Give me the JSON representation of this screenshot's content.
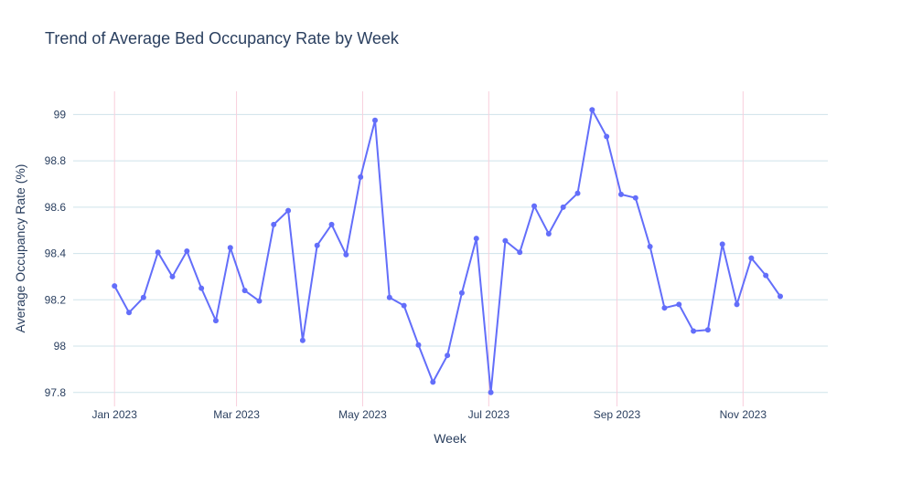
{
  "chart_data": {
    "type": "line",
    "title": "Trend of Average Bed Occupancy Rate by Week",
    "xlabel": "Week",
    "ylabel": "Average Occupancy Rate (%)",
    "ylim": [
      97.74,
      99.1
    ],
    "xlim": [
      "2022-12-12",
      "2023-12-12"
    ],
    "grid": {
      "x": true,
      "y": true
    },
    "colors": {
      "line": "#636efa",
      "x_grid": "#f8cfdc",
      "y_grid": "#cfe3ea",
      "text": "#2a3f5f"
    },
    "y_ticks": [
      97.8,
      98,
      98.2,
      98.4,
      98.6,
      98.8,
      99
    ],
    "y_tick_labels": [
      "97.8",
      "98",
      "98.2",
      "98.4",
      "98.6",
      "98.8",
      "99"
    ],
    "x_ticks": [
      {
        "date": "2023-01-01",
        "label": "Jan 2023"
      },
      {
        "date": "2023-03-01",
        "label": "Mar 2023"
      },
      {
        "date": "2023-05-01",
        "label": "May 2023"
      },
      {
        "date": "2023-07-01",
        "label": "Jul 2023"
      },
      {
        "date": "2023-09-01",
        "label": "Sep 2023"
      },
      {
        "date": "2023-11-01",
        "label": "Nov 2023"
      }
    ],
    "series": [
      {
        "x": [
          "2023-01-01",
          "2023-01-08",
          "2023-01-15",
          "2023-01-22",
          "2023-01-29",
          "2023-02-05",
          "2023-02-12",
          "2023-02-19",
          "2023-02-26",
          "2023-03-05",
          "2023-03-12",
          "2023-03-19",
          "2023-03-26",
          "2023-04-02",
          "2023-04-09",
          "2023-04-16",
          "2023-04-23",
          "2023-04-30",
          "2023-05-07",
          "2023-05-14",
          "2023-05-21",
          "2023-05-28",
          "2023-06-04",
          "2023-06-11",
          "2023-06-18",
          "2023-06-25",
          "2023-07-02",
          "2023-07-09",
          "2023-07-16",
          "2023-07-23",
          "2023-07-30",
          "2023-08-06",
          "2023-08-13",
          "2023-08-20",
          "2023-08-27",
          "2023-09-03",
          "2023-09-10",
          "2023-09-17",
          "2023-09-24",
          "2023-10-01",
          "2023-10-08",
          "2023-10-15",
          "2023-10-22",
          "2023-10-29",
          "2023-11-05",
          "2023-11-12",
          "2023-11-19"
        ],
        "values": [
          98.26,
          98.145,
          98.21,
          98.405,
          98.3,
          98.41,
          98.25,
          98.11,
          98.425,
          98.24,
          98.195,
          98.525,
          98.585,
          98.025,
          98.435,
          98.525,
          98.395,
          98.73,
          98.975,
          98.21,
          98.175,
          98.005,
          97.845,
          97.96,
          98.23,
          98.465,
          97.8,
          98.455,
          98.405,
          98.605,
          98.485,
          98.6,
          98.66,
          99.02,
          98.905,
          98.655,
          98.64,
          98.43,
          98.165,
          98.18,
          98.065,
          98.07,
          98.44,
          98.18,
          98.38,
          98.305,
          98.215
        ]
      }
    ]
  }
}
